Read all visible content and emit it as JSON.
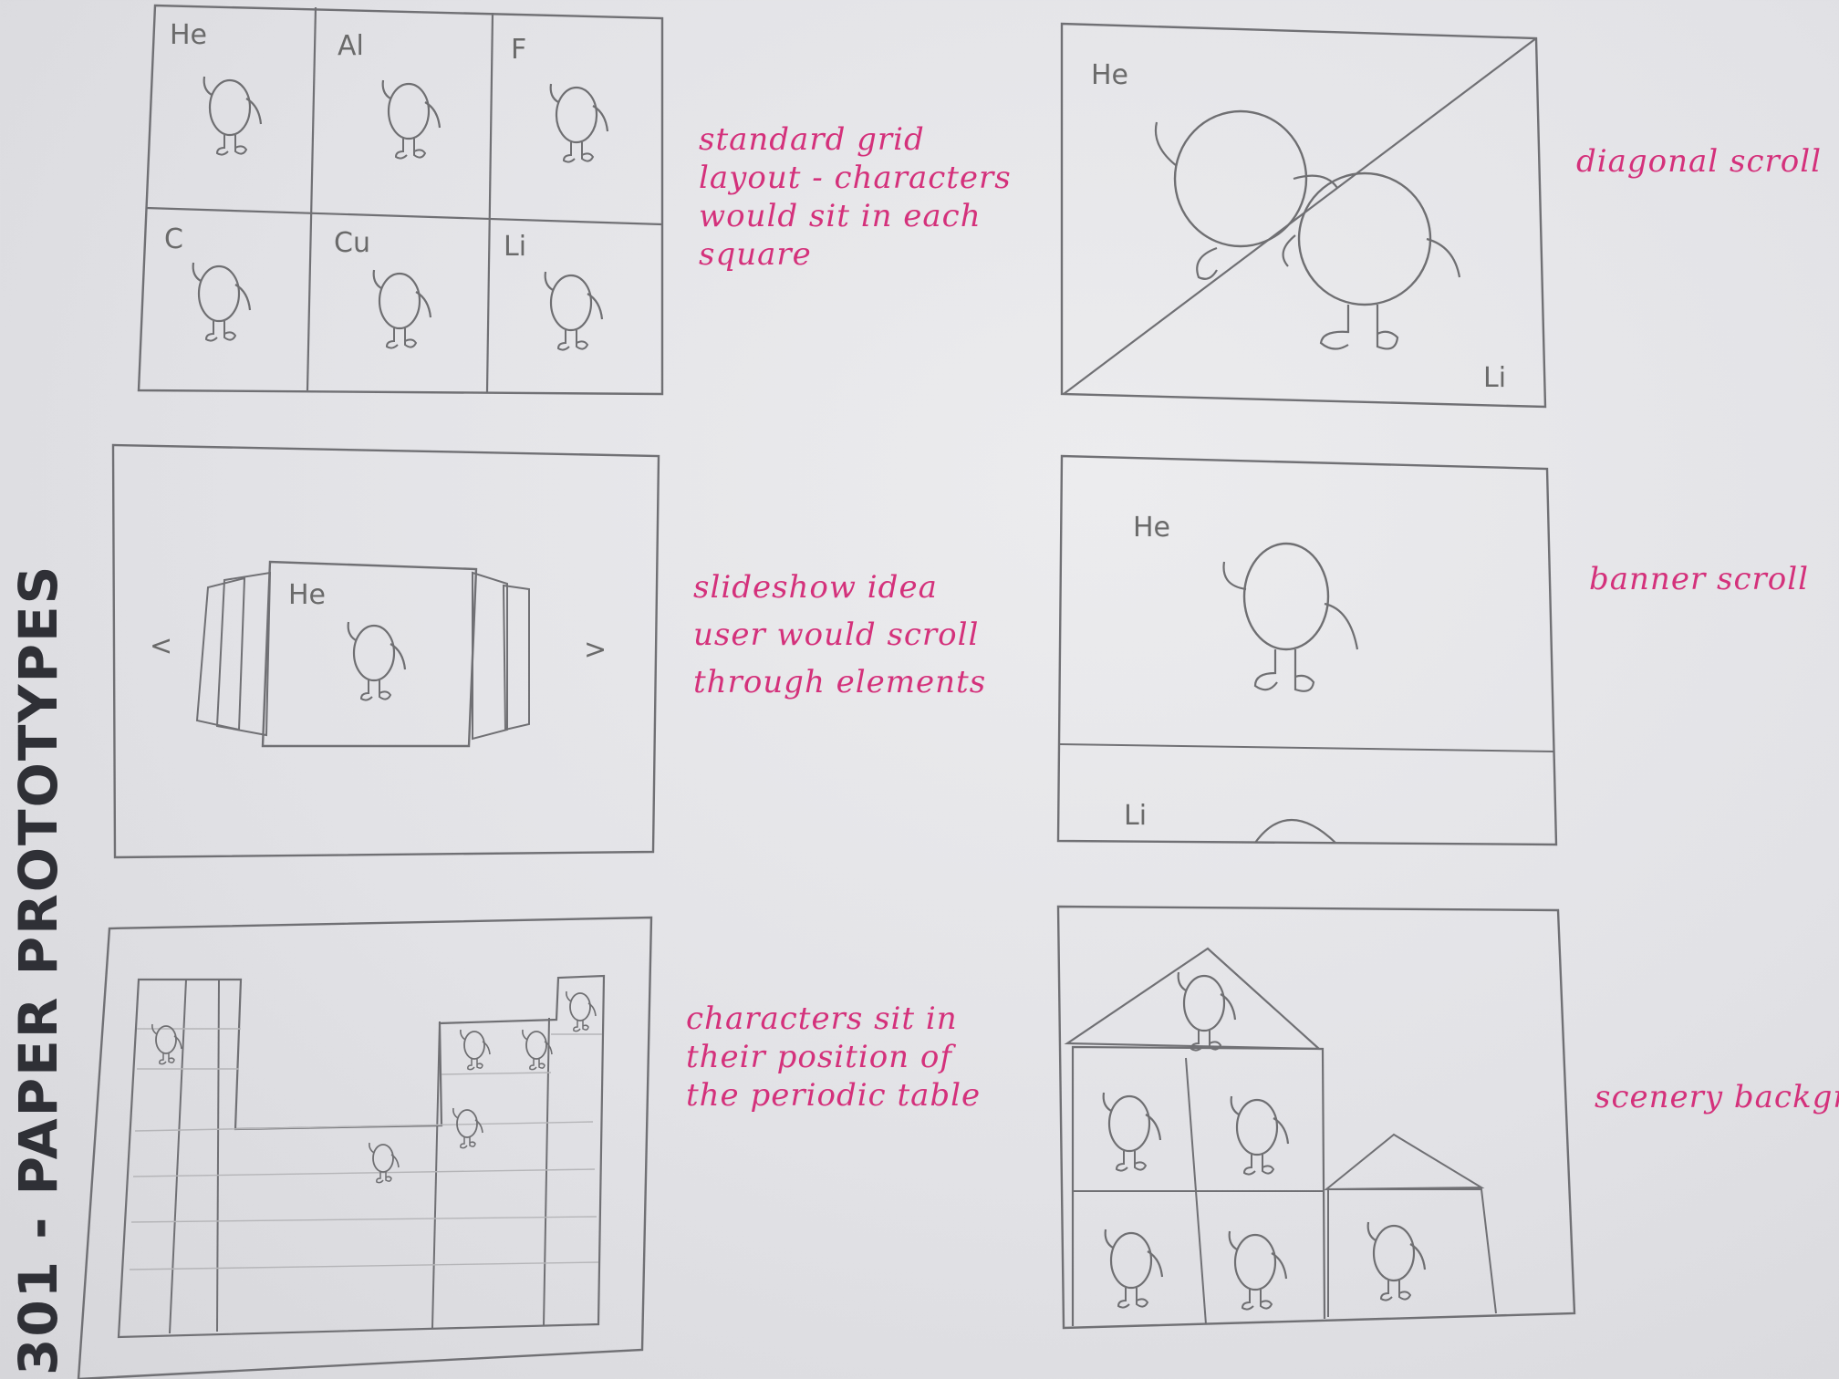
{
  "title": "301 - PAPER PROTOTYPES",
  "sketches": [
    {
      "id": "standard-grid",
      "note": "standard grid\nlayout - characters\nwould sit in each\nsquare",
      "cells": [
        "He",
        "Al",
        "F",
        "C",
        "Cu",
        "Li"
      ]
    },
    {
      "id": "diagonal-scroll",
      "note": "diagonal scroll",
      "labels": [
        "He",
        "Li"
      ]
    },
    {
      "id": "slideshow",
      "note": "slideshow idea\nuser would scroll\nthrough elements",
      "labels": [
        "He"
      ],
      "prev_symbol": "<",
      "next_symbol": ">"
    },
    {
      "id": "banner-scroll",
      "note": "banner scroll",
      "labels": [
        "He",
        "Li"
      ]
    },
    {
      "id": "periodic-table",
      "note": "characters sit in\ntheir position of\nthe periodic table"
    },
    {
      "id": "scenery-background",
      "note": "scenery backgroun"
    }
  ],
  "colors": {
    "pencil": "#6f6f72",
    "ink": "#d4317b",
    "paper": "#e7e7ea"
  }
}
